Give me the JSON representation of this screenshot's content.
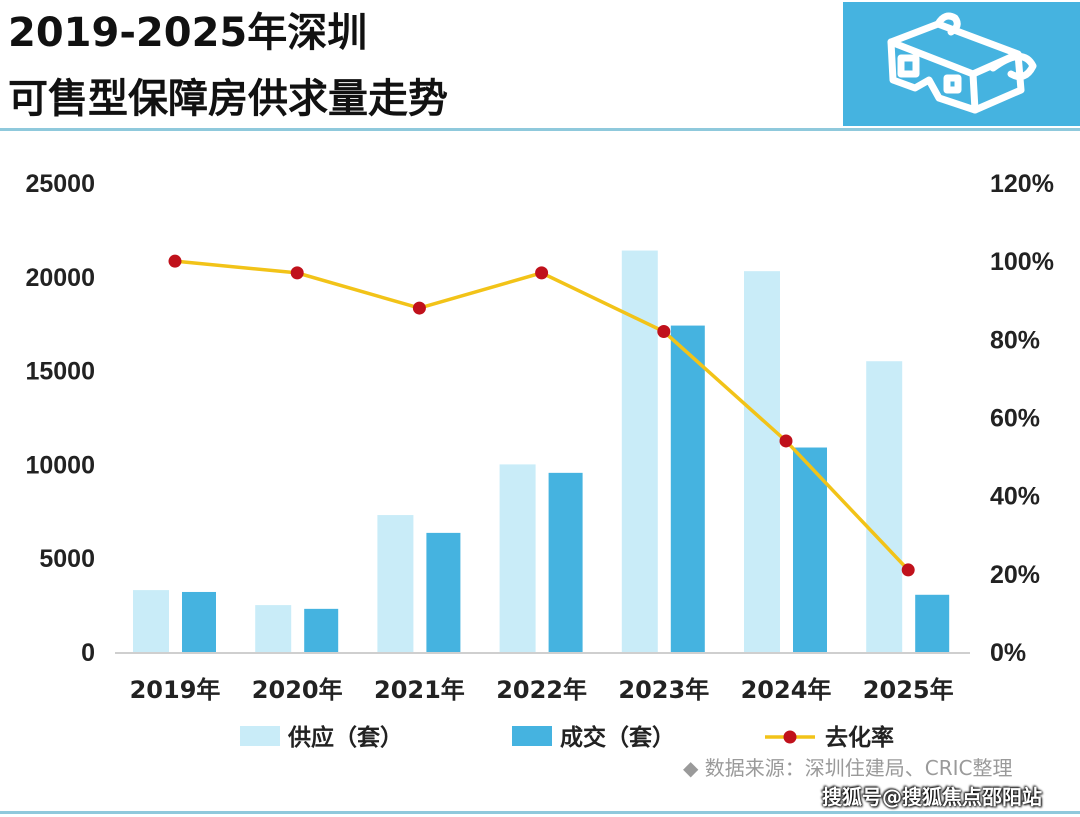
{
  "title_line1": "2019-2025年深圳",
  "title_line2": "可售型保障房供求量走势",
  "logo_icon": "3d-glasses-icon",
  "source": "◆  数据来源：深圳住建局、CRIC整理",
  "watermark": "搜狐号@搜狐焦点邵阳站",
  "colors": {
    "supply": "#c9ecf8",
    "deal": "#45b3e0",
    "line": "#f2c318",
    "marker": "#c0111b"
  },
  "chart_data": {
    "type": "bar",
    "categories": [
      "2019年",
      "2020年",
      "2021年",
      "2022年",
      "2023年",
      "2024年",
      "2025年"
    ],
    "series": [
      {
        "name": "供应（套）",
        "type": "bar",
        "axis": "left",
        "values": [
          3300,
          2500,
          7300,
          10000,
          21400,
          20300,
          15500
        ]
      },
      {
        "name": "成交（套）",
        "type": "bar",
        "axis": "left",
        "values": [
          3200,
          2300,
          6350,
          9550,
          17400,
          10900,
          3050
        ]
      },
      {
        "name": "去化率",
        "type": "line",
        "axis": "right",
        "values": [
          100,
          97,
          88,
          97,
          82,
          54,
          21
        ]
      }
    ],
    "ylim_left": [
      0,
      25000
    ],
    "yticks_left": [
      "0",
      "5000",
      "10000",
      "15000",
      "20000",
      "25000"
    ],
    "ylim_right": [
      0,
      120
    ],
    "yticks_right": [
      "0%",
      "20%",
      "40%",
      "60%",
      "80%",
      "100%",
      "120%"
    ],
    "grid": false,
    "legend": "bottom"
  }
}
